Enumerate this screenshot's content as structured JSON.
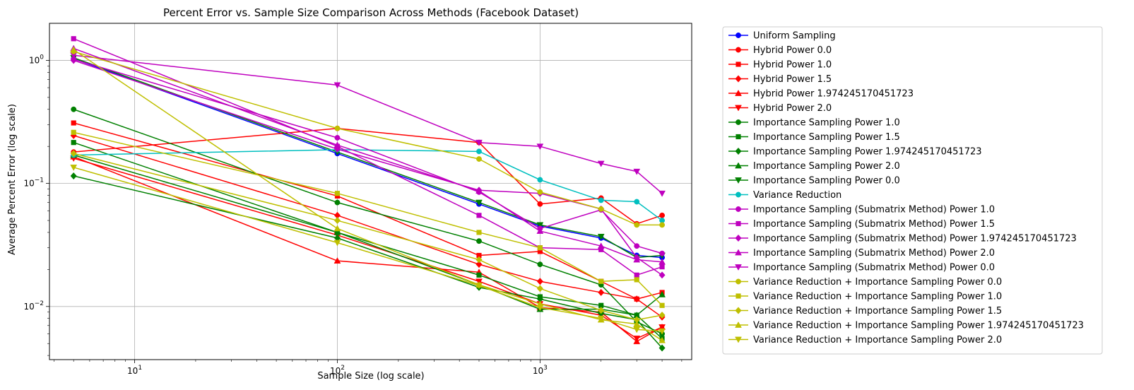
{
  "chart_data": {
    "type": "line",
    "title": "Percent Error vs. Sample Size Comparison Across Methods (Facebook Dataset)",
    "xlabel": "Sample Size (log scale)",
    "ylabel": "Average Percent Error (log scale)",
    "x_scale": "log",
    "y_scale": "log",
    "xlim": [
      3.8,
      5600
    ],
    "ylim": [
      0.0037,
      2.0
    ],
    "x_ticks": [
      {
        "value": 10,
        "base": "10",
        "exp": "1"
      },
      {
        "value": 100,
        "base": "10",
        "exp": "2"
      },
      {
        "value": 1000,
        "base": "10",
        "exp": "3"
      }
    ],
    "y_ticks": [
      {
        "value": 0.01,
        "base": "10",
        "exp": "−2"
      },
      {
        "value": 0.1,
        "base": "10",
        "exp": "−1"
      },
      {
        "value": 1,
        "base": "10",
        "exp": "0"
      }
    ],
    "grid": true,
    "legend_position": "outside-right",
    "x": [
      5,
      100,
      500,
      1000,
      2000,
      3000,
      4000
    ],
    "series": [
      {
        "name": "Uniform Sampling",
        "color": "#0000ff",
        "marker": "circle",
        "values": [
          1.03,
          0.175,
          0.068,
          0.045,
          0.036,
          0.026,
          0.025
        ]
      },
      {
        "name": "Hybrid Power 0.0",
        "color": "#ff0000",
        "marker": "circle",
        "values": [
          0.18,
          0.28,
          0.215,
          0.068,
          0.076,
          0.047,
          0.055
        ]
      },
      {
        "name": "Hybrid Power 1.0",
        "color": "#ff0000",
        "marker": "square",
        "values": [
          0.31,
          0.079,
          0.026,
          0.028,
          0.016,
          0.0115,
          0.013
        ]
      },
      {
        "name": "Hybrid Power 1.5",
        "color": "#ff0000",
        "marker": "diamond",
        "values": [
          0.245,
          0.055,
          0.022,
          0.016,
          0.013,
          0.0115,
          0.0082
        ]
      },
      {
        "name": "Hybrid Power 1.974245170451723",
        "color": "#ff0000",
        "marker": "triangle-up",
        "values": [
          0.165,
          0.0235,
          0.019,
          0.0098,
          0.009,
          0.0052,
          0.0068
        ]
      },
      {
        "name": "Hybrid Power 2.0",
        "color": "#ff0000",
        "marker": "triangle-down",
        "values": [
          0.16,
          0.038,
          0.016,
          0.0105,
          0.0085,
          0.0055,
          0.0068
        ]
      },
      {
        "name": "Importance Sampling Power 1.0",
        "color": "#008000",
        "marker": "circle",
        "values": [
          0.4,
          0.07,
          0.034,
          0.022,
          0.015,
          0.0075,
          0.006
        ]
      },
      {
        "name": "Importance Sampling Power 1.5",
        "color": "#008000",
        "marker": "square",
        "values": [
          0.215,
          0.04,
          0.018,
          0.012,
          0.0102,
          0.0085,
          0.0055
        ]
      },
      {
        "name": "Importance Sampling Power 1.974245170451723",
        "color": "#008000",
        "marker": "diamond",
        "values": [
          0.115,
          0.036,
          0.0143,
          0.0115,
          0.0088,
          0.0078,
          0.0046
        ]
      },
      {
        "name": "Importance Sampling Power 2.0",
        "color": "#008000",
        "marker": "triangle-up",
        "values": [
          0.17,
          0.04,
          0.015,
          0.0095,
          0.0095,
          0.0085,
          0.0125
        ]
      },
      {
        "name": "Importance Sampling Power 0.0",
        "color": "#008000",
        "marker": "triangle-down",
        "values": [
          1.05,
          0.18,
          0.07,
          0.046,
          0.037,
          0.025,
          0.026
        ]
      },
      {
        "name": "Variance Reduction",
        "color": "#00bfbf",
        "marker": "circle",
        "values": [
          0.17,
          0.188,
          0.182,
          0.107,
          0.073,
          0.071,
          0.05
        ]
      },
      {
        "name": "Importance Sampling (Submatrix Method) Power 1.0",
        "color": "#bf00bf",
        "marker": "circle",
        "values": [
          1.02,
          0.235,
          0.085,
          0.043,
          0.061,
          0.031,
          0.027
        ]
      },
      {
        "name": "Importance Sampling (Submatrix Method) Power 1.5",
        "color": "#bf00bf",
        "marker": "square",
        "values": [
          1.5,
          0.2,
          0.055,
          0.03,
          0.029,
          0.018,
          0.021
        ]
      },
      {
        "name": "Importance Sampling (Submatrix Method) Power 1.974245170451723",
        "color": "#bf00bf",
        "marker": "diamond",
        "values": [
          1.0,
          0.19,
          0.088,
          0.083,
          0.062,
          0.025,
          0.018
        ]
      },
      {
        "name": "Importance Sampling (Submatrix Method) Power 2.0",
        "color": "#bf00bf",
        "marker": "triangle-up",
        "values": [
          1.25,
          0.205,
          0.087,
          0.041,
          0.031,
          0.024,
          0.023
        ]
      },
      {
        "name": "Importance Sampling (Submatrix Method) Power 0.0",
        "color": "#bf00bf",
        "marker": "triangle-down",
        "values": [
          1.1,
          0.63,
          0.215,
          0.2,
          0.145,
          0.125,
          0.083
        ]
      },
      {
        "name": "Variance Reduction + Importance Sampling Power 0.0",
        "color": "#bfbf00",
        "marker": "circle",
        "values": [
          1.18,
          0.28,
          0.158,
          0.085,
          0.062,
          0.046,
          0.046
        ]
      },
      {
        "name": "Variance Reduction + Importance Sampling Power 1.0",
        "color": "#bfbf00",
        "marker": "square",
        "values": [
          0.26,
          0.083,
          0.04,
          0.03,
          0.016,
          0.0165,
          0.0102
        ]
      },
      {
        "name": "Variance Reduction + Importance Sampling Power 1.5",
        "color": "#bfbf00",
        "marker": "diamond",
        "values": [
          0.175,
          0.05,
          0.024,
          0.014,
          0.0093,
          0.0078,
          0.0085
        ]
      },
      {
        "name": "Variance Reduction + Importance Sampling Power 1.974245170451723",
        "color": "#bfbf00",
        "marker": "triangle-up",
        "values": [
          1.22,
          0.043,
          0.015,
          0.0105,
          0.0078,
          0.0072,
          0.0053
        ]
      },
      {
        "name": "Variance Reduction + Importance Sampling Power 2.0",
        "color": "#bfbf00",
        "marker": "triangle-down",
        "values": [
          0.135,
          0.033,
          0.0148,
          0.0098,
          0.008,
          0.0065,
          0.0063
        ]
      }
    ]
  }
}
